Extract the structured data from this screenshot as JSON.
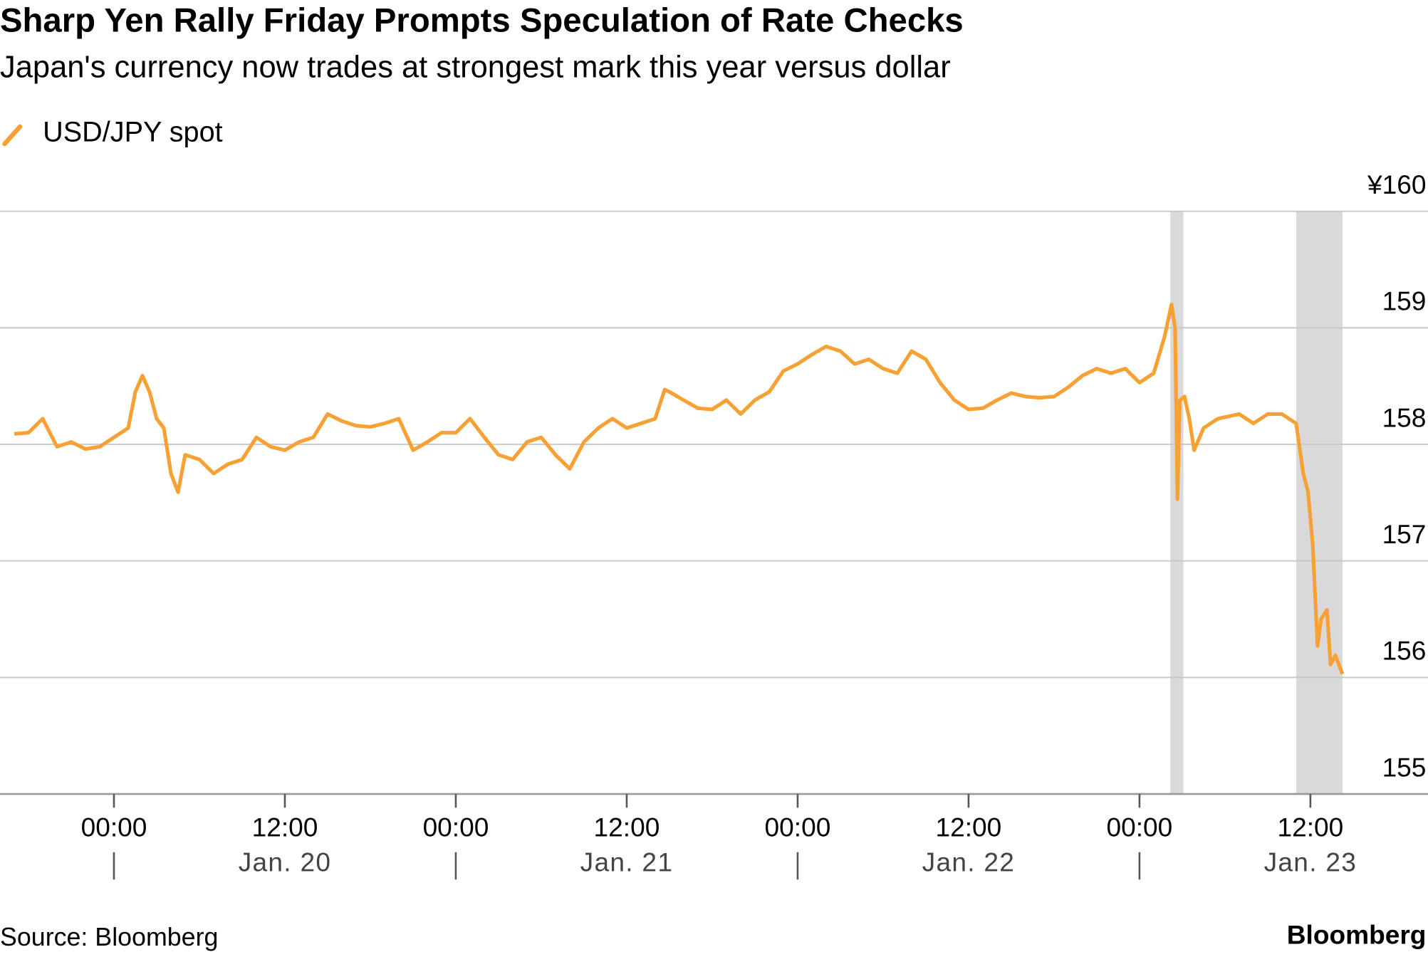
{
  "chart_data": {
    "type": "line",
    "title": "Sharp Yen Rally Friday Prompts Speculation of Rate Checks",
    "subtitle": "Japan's currency now trades at strongest mark this year versus dollar",
    "source": "Source: Bloomberg",
    "brand": "Bloomberg",
    "legend": "top-left",
    "grid": true,
    "xlim": [
      "Jan. 19 16:00",
      "Jan. 23 20:00"
    ],
    "ylim": [
      155,
      160
    ],
    "yticks": [
      {
        "value": 160,
        "label": "¥160"
      },
      159,
      158,
      157,
      156,
      155
    ],
    "xticks": [
      {
        "value": "Jan. 20 00:00",
        "label": "00:00"
      },
      {
        "value": "Jan. 20 12:00",
        "label": "12:00"
      },
      {
        "value": "Jan. 21 00:00",
        "label": "00:00"
      },
      {
        "value": "Jan. 21 12:00",
        "label": "12:00"
      },
      {
        "value": "Jan. 22 00:00",
        "label": "00:00"
      },
      {
        "value": "Jan. 22 12:00",
        "label": "12:00"
      },
      {
        "value": "Jan. 23 00:00",
        "label": "00:00"
      },
      {
        "value": "Jan. 23 12:00",
        "label": "12:00"
      }
    ],
    "date_labels": [
      {
        "value": "Jan. 20 12:00",
        "label": "Jan. 20"
      },
      {
        "value": "Jan. 21 12:00",
        "label": "Jan. 21"
      },
      {
        "value": "Jan. 22 12:00",
        "label": "Jan. 22"
      },
      {
        "value": "Jan. 23 12:00",
        "label": "Jan. 23"
      }
    ],
    "shaded": [
      [
        "Jan. 23 02:10",
        "Jan. 23 03:05"
      ],
      [
        "Jan. 23 11:00",
        "Jan. 23 14:15"
      ]
    ],
    "x": [
      "Jan. 19 17:00",
      "Jan. 19 18:00",
      "Jan. 19 19:00",
      "Jan. 19 20:00",
      "Jan. 19 21:00",
      "Jan. 19 22:00",
      "Jan. 19 23:00",
      "Jan. 20 00:00",
      "Jan. 20 01:00",
      "Jan. 20 01:30",
      "Jan. 20 02:00",
      "Jan. 20 02:30",
      "Jan. 20 03:00",
      "Jan. 20 03:30",
      "Jan. 20 04:00",
      "Jan. 20 04:30",
      "Jan. 20 05:00",
      "Jan. 20 06:00",
      "Jan. 20 07:00",
      "Jan. 20 08:00",
      "Jan. 20 09:00",
      "Jan. 20 10:00",
      "Jan. 20 11:00",
      "Jan. 20 12:00",
      "Jan. 20 13:00",
      "Jan. 20 14:00",
      "Jan. 20 15:00",
      "Jan. 20 16:00",
      "Jan. 20 17:00",
      "Jan. 20 18:00",
      "Jan. 20 19:00",
      "Jan. 20 20:00",
      "Jan. 20 21:00",
      "Jan. 20 22:00",
      "Jan. 20 23:00",
      "Jan. 21 00:00",
      "Jan. 21 01:00",
      "Jan. 21 02:00",
      "Jan. 21 03:00",
      "Jan. 21 04:00",
      "Jan. 21 05:00",
      "Jan. 21 06:00",
      "Jan. 21 07:00",
      "Jan. 21 08:00",
      "Jan. 21 09:00",
      "Jan. 21 10:00",
      "Jan. 21 11:00",
      "Jan. 21 12:00",
      "Jan. 21 13:00",
      "Jan. 21 14:00",
      "Jan. 21 14:40",
      "Jan. 21 15:00",
      "Jan. 21 16:00",
      "Jan. 21 17:00",
      "Jan. 21 18:00",
      "Jan. 21 19:00",
      "Jan. 21 20:00",
      "Jan. 21 21:00",
      "Jan. 21 22:00",
      "Jan. 21 23:00",
      "Jan. 22 00:00",
      "Jan. 22 01:00",
      "Jan. 22 02:00",
      "Jan. 22 03:00",
      "Jan. 22 04:00",
      "Jan. 22 05:00",
      "Jan. 22 06:00",
      "Jan. 22 07:00",
      "Jan. 22 08:00",
      "Jan. 22 09:00",
      "Jan. 22 10:00",
      "Jan. 22 11:00",
      "Jan. 22 12:00",
      "Jan. 22 13:00",
      "Jan. 22 14:00",
      "Jan. 22 15:00",
      "Jan. 22 16:00",
      "Jan. 22 17:00",
      "Jan. 22 18:00",
      "Jan. 22 19:00",
      "Jan. 22 20:00",
      "Jan. 22 21:00",
      "Jan. 22 22:00",
      "Jan. 22 23:00",
      "Jan. 23 00:00",
      "Jan. 23 01:00",
      "Jan. 23 01:45",
      "Jan. 23 02:15",
      "Jan. 23 02:30",
      "Jan. 23 02:40",
      "Jan. 23 02:50",
      "Jan. 23 03:10",
      "Jan. 23 03:30",
      "Jan. 23 03:50",
      "Jan. 23 04:30",
      "Jan. 23 05:30",
      "Jan. 23 07:00",
      "Jan. 23 08:00",
      "Jan. 23 09:00",
      "Jan. 23 10:00",
      "Jan. 23 11:00",
      "Jan. 23 11:30",
      "Jan. 23 11:50",
      "Jan. 23 12:10",
      "Jan. 23 12:30",
      "Jan. 23 12:45",
      "Jan. 23 13:10",
      "Jan. 23 13:25",
      "Jan. 23 13:45",
      "Jan. 23 14:15"
    ],
    "series": [
      {
        "name": "USD/JPY spot",
        "color": "#f7a134",
        "values": [
          158.09,
          158.1,
          158.22,
          157.98,
          158.02,
          157.96,
          157.98,
          158.06,
          158.14,
          158.45,
          158.59,
          158.45,
          158.22,
          158.14,
          157.75,
          157.59,
          157.91,
          157.87,
          157.75,
          157.83,
          157.87,
          158.06,
          157.98,
          157.95,
          158.02,
          158.06,
          158.26,
          158.2,
          158.16,
          158.15,
          158.18,
          158.22,
          157.95,
          158.02,
          158.1,
          158.1,
          158.22,
          158.06,
          157.91,
          157.87,
          158.02,
          158.06,
          157.91,
          157.79,
          158.02,
          158.14,
          158.22,
          158.14,
          158.18,
          158.22,
          158.47,
          158.45,
          158.38,
          158.31,
          158.3,
          158.38,
          158.26,
          158.38,
          158.45,
          158.63,
          158.69,
          158.77,
          158.84,
          158.8,
          158.69,
          158.73,
          158.65,
          158.61,
          158.8,
          158.73,
          158.53,
          158.38,
          158.3,
          158.31,
          158.38,
          158.44,
          158.41,
          158.4,
          158.41,
          158.49,
          158.59,
          158.65,
          158.61,
          158.65,
          158.53,
          158.61,
          158.92,
          159.2,
          159.0,
          157.53,
          158.38,
          158.41,
          158.22,
          157.95,
          158.14,
          158.22,
          158.26,
          158.18,
          158.26,
          158.26,
          158.18,
          157.75,
          157.59,
          157.13,
          156.27,
          156.5,
          156.58,
          156.11,
          156.19,
          156.03
        ]
      }
    ]
  }
}
